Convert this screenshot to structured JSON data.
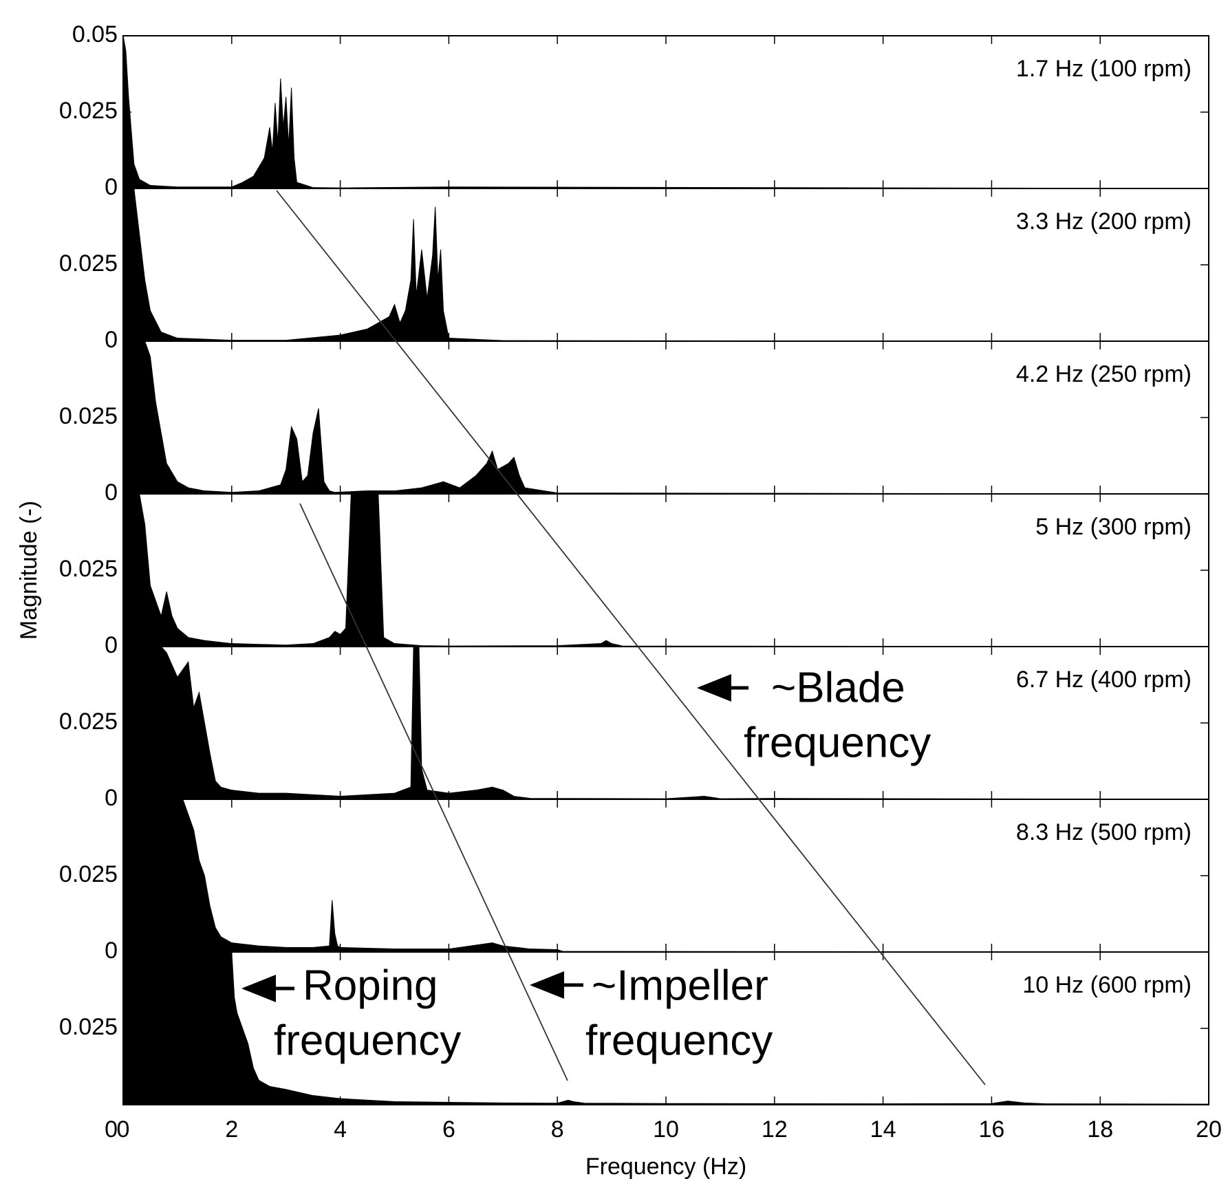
{
  "chart_data": [
    {
      "type": "area",
      "label": "1.7 Hz (100 rpm)",
      "color": "#000000",
      "xlim": [
        0,
        20
      ],
      "xticks": [
        0,
        2,
        4,
        6,
        8,
        10,
        12,
        14,
        16,
        18,
        20
      ],
      "ylim": [
        0,
        0.05
      ],
      "yticks": [
        0,
        0.025,
        0.05
      ],
      "x": [
        0,
        0.05,
        0.1,
        0.2,
        0.3,
        0.5,
        1,
        2,
        2.2,
        2.4,
        2.5,
        2.6,
        2.7,
        2.75,
        2.8,
        2.85,
        2.9,
        2.95,
        3.0,
        3.05,
        3.1,
        3.15,
        3.2,
        3.5,
        4,
        6,
        20
      ],
      "values": [
        0.05,
        0.045,
        0.03,
        0.008,
        0.003,
        0.001,
        0.0005,
        0.0005,
        0.002,
        0.004,
        0.007,
        0.01,
        0.02,
        0.012,
        0.028,
        0.015,
        0.036,
        0.02,
        0.03,
        0.014,
        0.033,
        0.01,
        0.002,
        0.0003,
        0.0002,
        0.0005,
        0
      ]
    },
    {
      "type": "area",
      "label": "3.3 Hz (200 rpm)",
      "color": "#000000",
      "xlim": [
        0,
        20
      ],
      "xticks": [
        0,
        2,
        4,
        6,
        8,
        10,
        12,
        14,
        16,
        18,
        20
      ],
      "ylim": [
        0,
        0.05
      ],
      "yticks": [
        0,
        0.025
      ],
      "x": [
        0,
        0.1,
        0.2,
        0.3,
        0.4,
        0.5,
        0.7,
        1,
        2,
        3,
        4,
        4.5,
        4.9,
        5.0,
        5.1,
        5.2,
        5.3,
        5.35,
        5.4,
        5.5,
        5.6,
        5.7,
        5.75,
        5.8,
        5.85,
        5.9,
        6.0,
        7,
        20
      ],
      "values": [
        0.05,
        0.05,
        0.05,
        0.035,
        0.02,
        0.01,
        0.003,
        0.001,
        0.0003,
        0.0003,
        0.002,
        0.004,
        0.008,
        0.012,
        0.006,
        0.01,
        0.02,
        0.04,
        0.015,
        0.03,
        0.014,
        0.028,
        0.044,
        0.02,
        0.03,
        0.01,
        0.001,
        0.0002,
        0
      ]
    },
    {
      "type": "area",
      "label": "4.2 Hz (250 rpm)",
      "color": "#000000",
      "xlim": [
        0,
        20
      ],
      "xticks": [
        0,
        2,
        4,
        6,
        8,
        10,
        12,
        14,
        16,
        18,
        20
      ],
      "ylim": [
        0,
        0.05
      ],
      "yticks": [
        0,
        0.025
      ],
      "x": [
        0,
        0.2,
        0.4,
        0.5,
        0.6,
        0.7,
        0.8,
        1,
        1.2,
        1.5,
        2,
        2.5,
        2.9,
        3.0,
        3.1,
        3.2,
        3.3,
        3.4,
        3.5,
        3.6,
        3.7,
        3.8,
        3.9,
        4.5,
        5,
        5.5,
        5.7,
        5.9,
        6.2,
        6.5,
        6.7,
        6.8,
        6.9,
        7.0,
        7.1,
        7.2,
        7.3,
        7.4,
        8,
        20
      ],
      "values": [
        0.05,
        0.05,
        0.05,
        0.045,
        0.03,
        0.02,
        0.01,
        0.004,
        0.002,
        0.001,
        0.0005,
        0.001,
        0.003,
        0.008,
        0.022,
        0.018,
        0.004,
        0.006,
        0.02,
        0.028,
        0.004,
        0.001,
        0.0005,
        0.001,
        0.001,
        0.002,
        0.003,
        0.004,
        0.002,
        0.006,
        0.01,
        0.014,
        0.008,
        0.009,
        0.01,
        0.012,
        0.006,
        0.002,
        0.0003,
        0
      ]
    },
    {
      "type": "area",
      "label": "5 Hz (300 rpm)",
      "ylabel": "Magnitude (-)",
      "color": "#000000",
      "xlim": [
        0,
        20
      ],
      "xticks": [
        0,
        2,
        4,
        6,
        8,
        10,
        12,
        14,
        16,
        18,
        20
      ],
      "ylim": [
        0,
        0.05
      ],
      "yticks": [
        0,
        0.025
      ],
      "x": [
        0,
        0.2,
        0.3,
        0.4,
        0.5,
        0.6,
        0.7,
        0.8,
        0.9,
        1,
        1.2,
        1.5,
        2,
        3,
        3.5,
        3.8,
        3.9,
        4.0,
        4.1,
        4.2,
        4.3,
        4.4,
        4.5,
        4.6,
        4.7,
        4.8,
        5,
        5.5,
        6,
        8,
        8.8,
        8.9,
        9.0,
        9.2,
        20
      ],
      "values": [
        0.05,
        0.05,
        0.05,
        0.04,
        0.02,
        0.015,
        0.01,
        0.018,
        0.01,
        0.006,
        0.003,
        0.002,
        0.001,
        0.0005,
        0.001,
        0.003,
        0.005,
        0.004,
        0.006,
        0.05,
        0.05,
        0.05,
        0.05,
        0.05,
        0.05,
        0.003,
        0.001,
        0.0003,
        0.0002,
        0.0003,
        0.001,
        0.002,
        0.001,
        0.0002,
        0
      ]
    },
    {
      "type": "area",
      "label": "6.7 Hz (400 rpm)",
      "annotation": [
        "~Blade",
        "frequency"
      ],
      "color": "#000000",
      "xlim": [
        0,
        20
      ],
      "xticks": [
        0,
        2,
        4,
        6,
        8,
        10,
        12,
        14,
        16,
        18,
        20
      ],
      "ylim": [
        0,
        0.05
      ],
      "yticks": [
        0,
        0.025
      ],
      "x": [
        0,
        0.3,
        0.5,
        0.7,
        0.8,
        1,
        1.2,
        1.3,
        1.4,
        1.5,
        1.6,
        1.7,
        1.8,
        2,
        2.5,
        3,
        4,
        5,
        5.3,
        5.35,
        5.4,
        5.45,
        5.5,
        5.6,
        6,
        6.5,
        6.8,
        7,
        7.2,
        7.5,
        10,
        10.7,
        10.9,
        11,
        12,
        20
      ],
      "values": [
        0.05,
        0.05,
        0.05,
        0.05,
        0.048,
        0.04,
        0.045,
        0.03,
        0.035,
        0.025,
        0.015,
        0.006,
        0.004,
        0.003,
        0.002,
        0.002,
        0.001,
        0.002,
        0.004,
        0.05,
        0.05,
        0.05,
        0.01,
        0.003,
        0.002,
        0.003,
        0.004,
        0.003,
        0.001,
        0.0003,
        0.0002,
        0.001,
        0.0005,
        0.0002,
        0.0003,
        0
      ]
    },
    {
      "type": "area",
      "label": "8.3 Hz (500 rpm)",
      "color": "#000000",
      "xlim": [
        0,
        20
      ],
      "xticks": [
        0,
        2,
        4,
        6,
        8,
        10,
        12,
        14,
        16,
        18,
        20
      ],
      "ylim": [
        0,
        0.05
      ],
      "yticks": [
        0,
        0.025
      ],
      "x": [
        0,
        0.5,
        1,
        1.1,
        1.2,
        1.3,
        1.4,
        1.5,
        1.6,
        1.7,
        1.8,
        2,
        2.5,
        3,
        3.5,
        3.8,
        3.85,
        3.9,
        3.95,
        4,
        5,
        6,
        6.8,
        7,
        7.5,
        8,
        8.1,
        20
      ],
      "values": [
        0.05,
        0.05,
        0.05,
        0.05,
        0.045,
        0.04,
        0.03,
        0.025,
        0.015,
        0.008,
        0.005,
        0.003,
        0.002,
        0.0015,
        0.0015,
        0.002,
        0.017,
        0.006,
        0.002,
        0.0015,
        0.001,
        0.001,
        0.003,
        0.002,
        0.001,
        0.0008,
        0.0002,
        0
      ]
    },
    {
      "type": "area",
      "label": "10 Hz (600 rpm)",
      "xlabel": "Frequency (Hz)",
      "annotation": [
        "Roping",
        "frequency",
        "~Impeller",
        "frequency"
      ],
      "color": "#000000",
      "xlim": [
        0,
        20
      ],
      "xticks": [
        0,
        2,
        4,
        6,
        8,
        10,
        12,
        14,
        16,
        18,
        20
      ],
      "ylim": [
        0,
        0.05
      ],
      "yticks": [
        0,
        0.025
      ],
      "x": [
        0,
        1,
        1.5,
        2,
        2.05,
        2.1,
        2.2,
        2.3,
        2.4,
        2.5,
        2.7,
        3,
        3.5,
        4,
        5,
        6,
        7,
        8,
        8.2,
        8.3,
        8.5,
        10,
        14,
        16,
        16.3,
        16.6,
        17,
        20
      ],
      "values": [
        0.05,
        0.05,
        0.05,
        0.05,
        0.035,
        0.03,
        0.025,
        0.02,
        0.012,
        0.008,
        0.006,
        0.005,
        0.003,
        0.002,
        0.001,
        0.0008,
        0.0006,
        0.0005,
        0.0015,
        0.001,
        0.0005,
        0.0004,
        0.0003,
        0.0004,
        0.0012,
        0.0006,
        0.0003,
        0.0002
      ]
    }
  ]
}
